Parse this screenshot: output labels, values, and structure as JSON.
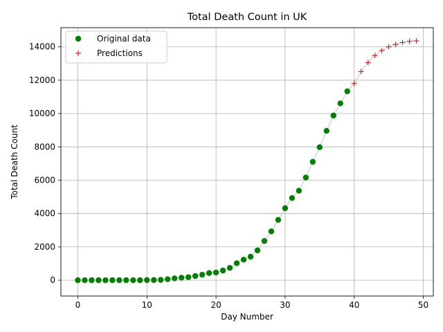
{
  "chart_data": {
    "type": "scatter",
    "title": "Total Death Count in UK",
    "xlabel": "Day Number",
    "ylabel": "Total Death Count",
    "xlim": [
      -2.45,
      51.45
    ],
    "ylim": [
      -950,
      15150
    ],
    "xticks": [
      0,
      10,
      20,
      30,
      40,
      50
    ],
    "yticks": [
      0,
      2000,
      4000,
      6000,
      8000,
      10000,
      12000,
      14000
    ],
    "grid": true,
    "legend_position": "upper-left",
    "fit_line_color": "#cccccc",
    "series": [
      {
        "name": "Original data",
        "marker": "circle",
        "color": "#008000",
        "x": [
          0,
          1,
          2,
          3,
          4,
          5,
          6,
          7,
          8,
          9,
          10,
          11,
          12,
          13,
          14,
          15,
          16,
          17,
          18,
          19,
          20,
          21,
          22,
          23,
          24,
          25,
          26,
          27,
          28,
          29,
          30,
          31,
          32,
          33,
          34,
          35,
          36,
          37,
          38,
          39
        ],
        "y": [
          0,
          0,
          0,
          0,
          0,
          0,
          0,
          0,
          0,
          0,
          10,
          10,
          20,
          60,
          110,
          150,
          180,
          250,
          330,
          430,
          460,
          580,
          740,
          1020,
          1230,
          1410,
          1790,
          2350,
          2930,
          3620,
          4320,
          4930,
          5370,
          6160,
          7100,
          7980,
          8960,
          9880,
          10610,
          11330
        ]
      },
      {
        "name": "Predictions",
        "marker": "plus",
        "color": "#ff0000",
        "x": [
          40,
          41,
          42,
          43,
          44,
          45,
          46,
          47,
          48,
          49
        ],
        "y": [
          11800,
          12520,
          13060,
          13480,
          13780,
          14000,
          14150,
          14260,
          14330,
          14360
        ]
      }
    ]
  }
}
